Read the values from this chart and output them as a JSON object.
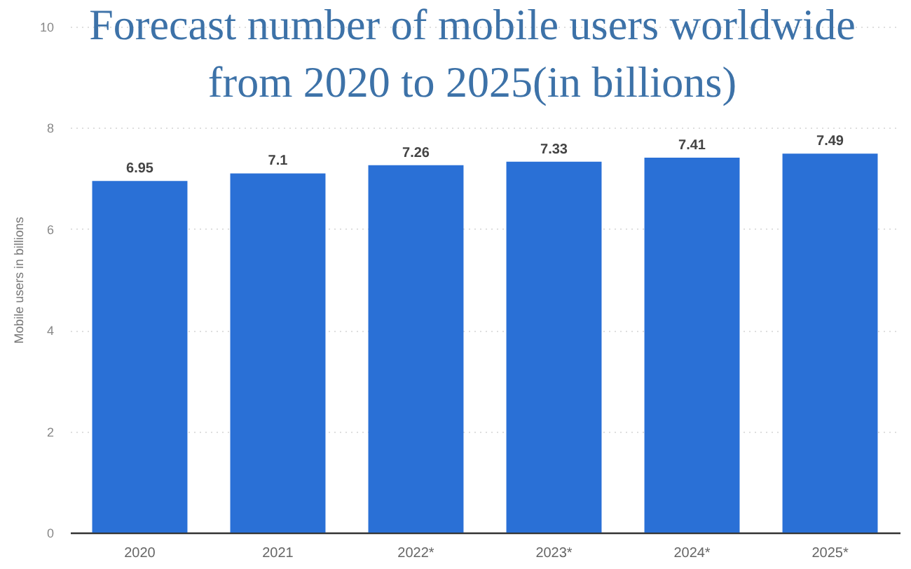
{
  "chart_data": {
    "type": "bar",
    "title": "Forecast number of mobile users worldwide from 2020 to 2025(in billions)",
    "categories": [
      "2020",
      "2021",
      "2022*",
      "2023*",
      "2024*",
      "2025*"
    ],
    "values": [
      6.95,
      7.1,
      7.26,
      7.33,
      7.41,
      7.49
    ],
    "color": "#2a70d6",
    "ylabel": "Mobile users in billions",
    "ylim": [
      0,
      10
    ],
    "yticks": [
      0,
      2,
      4,
      6,
      8,
      10
    ],
    "grid": "y",
    "data_labels": true
  }
}
